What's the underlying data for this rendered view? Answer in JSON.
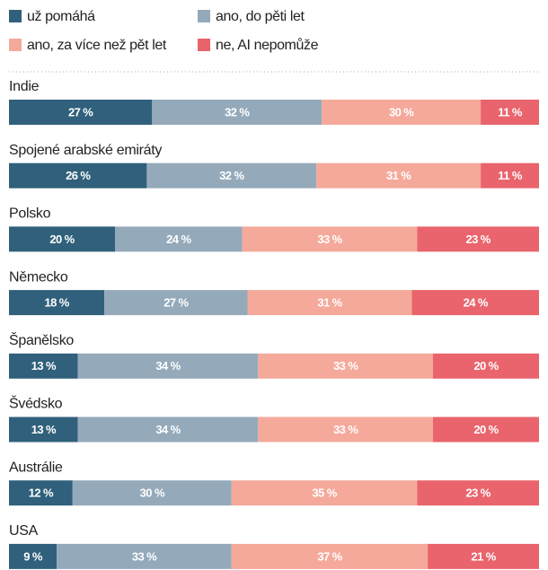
{
  "chart_data": {
    "type": "stacked-bar",
    "categories": [
      "Indie",
      "Spojené arabské emiráty",
      "Polsko",
      "Německo",
      "Španělsko",
      "Švédsko",
      "Austrálie",
      "USA"
    ],
    "xlim": [
      0,
      100
    ],
    "series": [
      {
        "name": "už pomáhá",
        "color": "#30607b",
        "values": [
          27,
          26,
          20,
          18,
          13,
          13,
          12,
          9
        ],
        "value_labels": [
          "27 %",
          "26 %",
          "20 %",
          "18 %",
          "13 %",
          "13 %",
          "12 %",
          "9 %"
        ]
      },
      {
        "name": "ano, do pěti let",
        "color": "#94aabb",
        "values": [
          32,
          32,
          24,
          27,
          34,
          34,
          30,
          33
        ],
        "value_labels": [
          "32 %",
          "32 %",
          "24 %",
          "27 %",
          "34 %",
          "34 %",
          "30 %",
          "33 %"
        ]
      },
      {
        "name": "ano, za více než pět let",
        "color": "#f5a99b",
        "values": [
          30,
          31,
          33,
          31,
          33,
          33,
          35,
          37
        ],
        "value_labels": [
          "30 %",
          "31 %",
          "33 %",
          "31 %",
          "33 %",
          "33 %",
          "35 %",
          "37 %"
        ]
      },
      {
        "name": "ne, AI nepomůže",
        "color": "#e9646c",
        "values": [
          11,
          11,
          23,
          24,
          20,
          20,
          23,
          21
        ],
        "value_labels": [
          "11 %",
          "11 %",
          "23 %",
          "24 %",
          "20 %",
          "20 %",
          "23 %",
          "21 %"
        ]
      }
    ]
  }
}
